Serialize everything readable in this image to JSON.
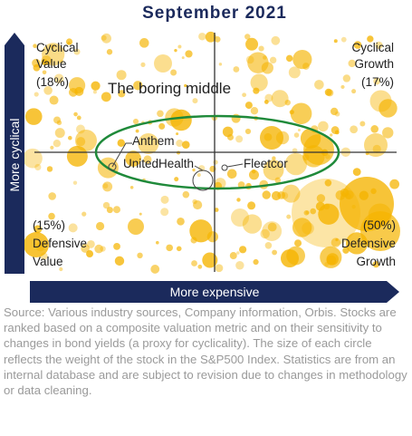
{
  "header": {
    "title": "September 2021"
  },
  "axes": {
    "y_label": "More cyclical",
    "x_label": "More expensive"
  },
  "quadrants": {
    "top_left": [
      "Cyclical",
      "Value",
      "(18%)"
    ],
    "top_right": [
      "Cyclical",
      "Growth",
      "(17%)"
    ],
    "bottom_left": [
      "(15%)",
      "Defensive",
      "Value"
    ],
    "bottom_right": [
      "(50%)",
      "Defensive",
      "Growth"
    ]
  },
  "middle_label": "The boring middle",
  "companies": [
    "Anthem",
    "UnitedHealth",
    "Fleetcor"
  ],
  "source": "Source: Various industry sources, Company information, Orbis. Stocks are ranked based on a composite valuation metric and on their sensitivity to changes in bond yields (a proxy for cyclicality). The size of each circle reflects the weight of the stock in the S&P500 Index. Statistics are from an internal database and are subject to revision due to changes in methodology or data cleaning."
}
